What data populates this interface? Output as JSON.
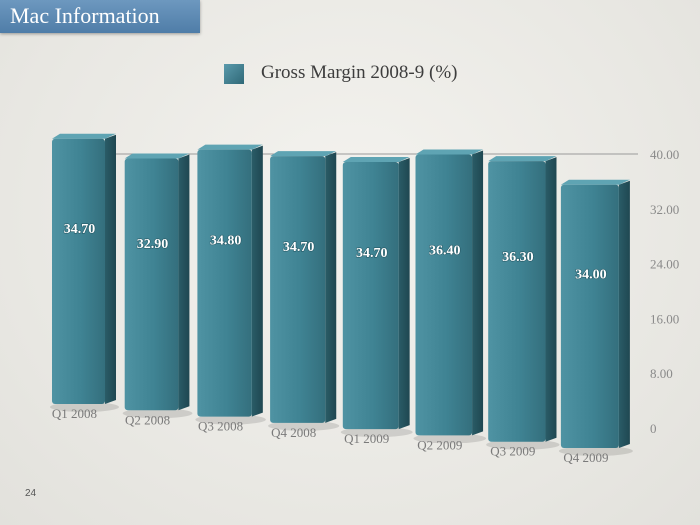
{
  "header": {
    "title": "Mac Information"
  },
  "footer": {
    "page_number": "24"
  },
  "chart_data": {
    "type": "bar",
    "title": "",
    "xlabel": "",
    "ylabel": "",
    "categories": [
      "Q1 2008",
      "Q2 2008",
      "Q3 2008",
      "Q4 2008",
      "Q1 2009",
      "Q2 2009",
      "Q3 2009",
      "Q4 2009"
    ],
    "series": [
      {
        "name": "Gross Margin 2008-9 (%)",
        "values": [
          34.7,
          32.9,
          34.8,
          34.7,
          34.7,
          36.4,
          36.3,
          34.0
        ],
        "value_labels": [
          "34.70",
          "32.90",
          "34.80",
          "34.70",
          "34.70",
          "36.40",
          "36.30",
          "34.00"
        ],
        "color": "#3f8393"
      }
    ],
    "ylim": [
      0,
      40
    ],
    "y_ticks": [
      0,
      8,
      16,
      24,
      32,
      40
    ],
    "y_tick_labels": [
      "0",
      "8.00",
      "16.00",
      "24.00",
      "32.00",
      "40.00"
    ],
    "grid": true,
    "legend_position": "top",
    "bar_style": "3d"
  }
}
